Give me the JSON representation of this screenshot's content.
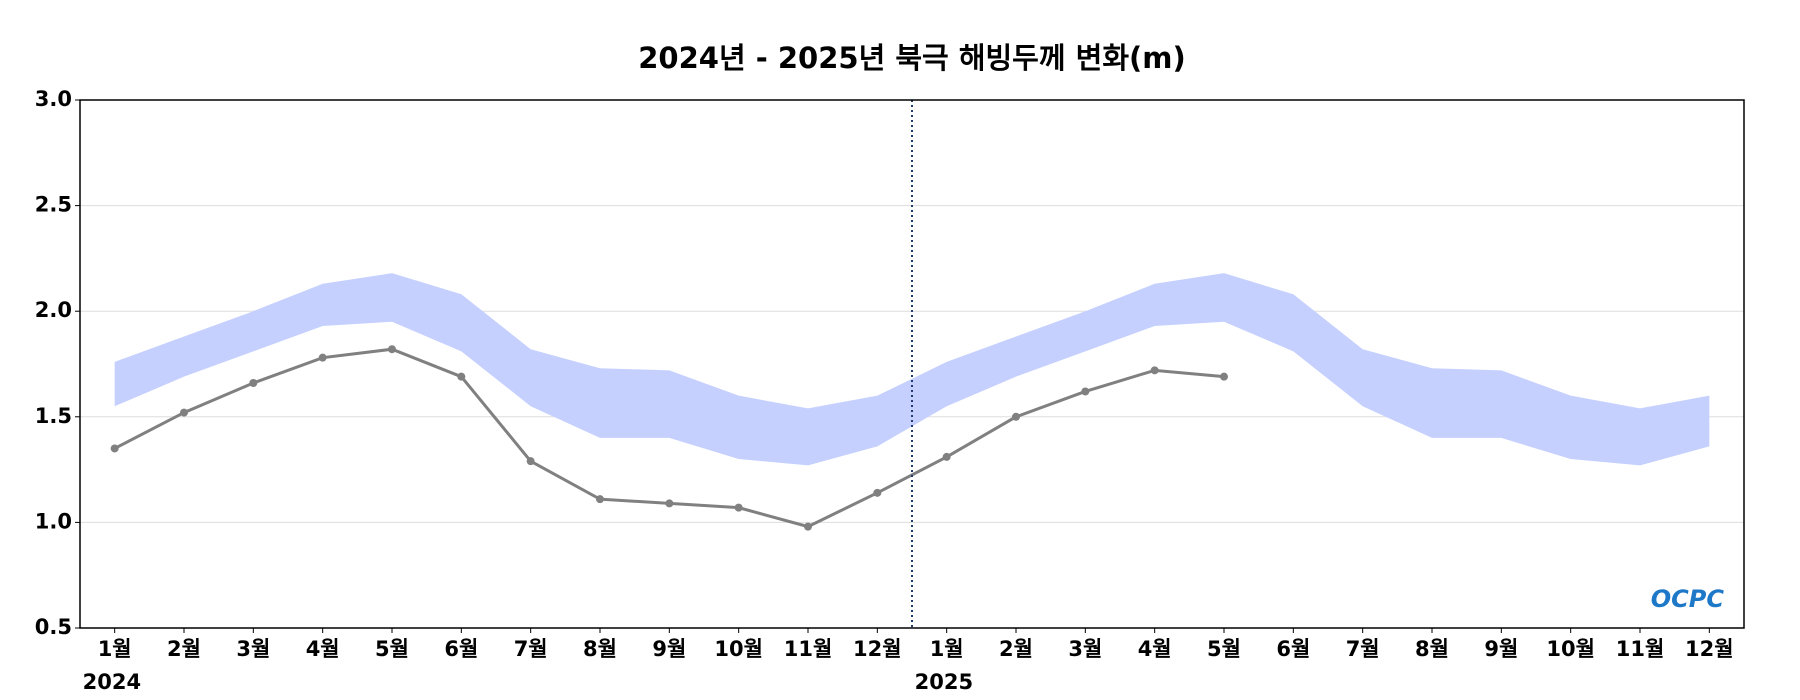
{
  "chart_data": {
    "type": "line",
    "title": "2024년 - 2025년 북극 해빙두께 변화(m)",
    "categories": [
      "1월",
      "2월",
      "3월",
      "4월",
      "5월",
      "6월",
      "7월",
      "8월",
      "9월",
      "10월",
      "11월",
      "12월",
      "1월",
      "2월",
      "3월",
      "4월",
      "5월",
      "6월",
      "7월",
      "8월",
      "9월",
      "10월",
      "11월",
      "12월"
    ],
    "years": [
      "2024",
      "2025"
    ],
    "band": {
      "color": "#c5d0ff",
      "upper": [
        1.76,
        1.88,
        2.0,
        2.13,
        2.18,
        2.08,
        1.82,
        1.73,
        1.72,
        1.6,
        1.54,
        1.6,
        1.76,
        1.88,
        2.0,
        2.13,
        2.18,
        2.08,
        1.82,
        1.73,
        1.72,
        1.6,
        1.54,
        1.6
      ],
      "lower": [
        1.55,
        1.69,
        1.81,
        1.93,
        1.95,
        1.81,
        1.55,
        1.4,
        1.4,
        1.3,
        1.27,
        1.36,
        1.55,
        1.69,
        1.81,
        1.93,
        1.95,
        1.81,
        1.55,
        1.4,
        1.4,
        1.3,
        1.27,
        1.36
      ]
    },
    "series": [
      {
        "color": "#808080",
        "values": [
          1.35,
          1.52,
          1.66,
          1.78,
          1.82,
          1.69,
          1.29,
          1.11,
          1.09,
          1.07,
          0.98,
          1.14,
          1.31,
          1.5,
          1.62,
          1.72,
          1.69,
          null,
          null,
          null,
          null,
          null,
          null,
          null
        ]
      }
    ],
    "ylim": [
      0.5,
      3.0
    ],
    "yticks": [
      0.5,
      {
        "value": 1,
        "label": "1.0"
      },
      1.5,
      {
        "value": 2,
        "label": "2.0"
      },
      2.5,
      {
        "value": 3,
        "label": "3.0"
      }
    ],
    "grid": true,
    "logo": "OCPC"
  }
}
